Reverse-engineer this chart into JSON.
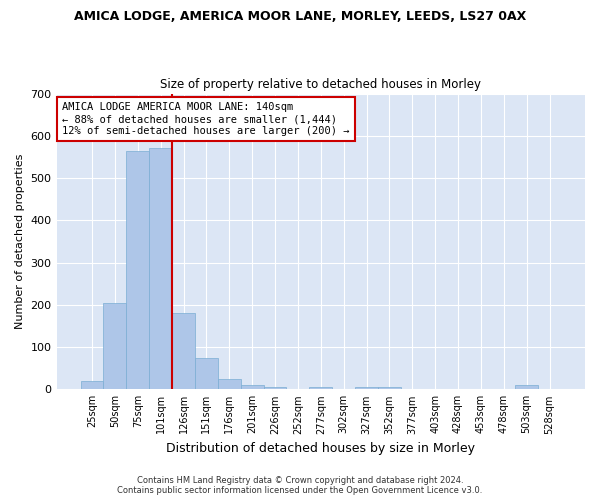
{
  "title": "AMICA LODGE, AMERICA MOOR LANE, MORLEY, LEEDS, LS27 0AX",
  "subtitle": "Size of property relative to detached houses in Morley",
  "xlabel": "Distribution of detached houses by size in Morley",
  "ylabel": "Number of detached properties",
  "categories": [
    "25sqm",
    "50sqm",
    "75sqm",
    "101sqm",
    "126sqm",
    "151sqm",
    "176sqm",
    "201sqm",
    "226sqm",
    "252sqm",
    "277sqm",
    "302sqm",
    "327sqm",
    "352sqm",
    "377sqm",
    "403sqm",
    "428sqm",
    "453sqm",
    "478sqm",
    "503sqm",
    "528sqm"
  ],
  "values": [
    20,
    205,
    565,
    570,
    180,
    75,
    25,
    10,
    5,
    0,
    5,
    0,
    5,
    5,
    0,
    0,
    0,
    0,
    0,
    10,
    0
  ],
  "bar_color": "#aec6e8",
  "bar_edge_color": "#7aadd4",
  "vline_color": "#cc0000",
  "vline_x": 3.5,
  "annotation_text": "AMICA LODGE AMERICA MOOR LANE: 140sqm\n← 88% of detached houses are smaller (1,444)\n12% of semi-detached houses are larger (200) →",
  "annotation_box_color": "#cc0000",
  "ylim": [
    0,
    700
  ],
  "yticks": [
    0,
    100,
    200,
    300,
    400,
    500,
    600,
    700
  ],
  "plot_bg_color": "#dce6f5",
  "grid_color": "#ffffff",
  "fig_bg_color": "#ffffff",
  "footer_line1": "Contains HM Land Registry data © Crown copyright and database right 2024.",
  "footer_line2": "Contains public sector information licensed under the Open Government Licence v3.0."
}
